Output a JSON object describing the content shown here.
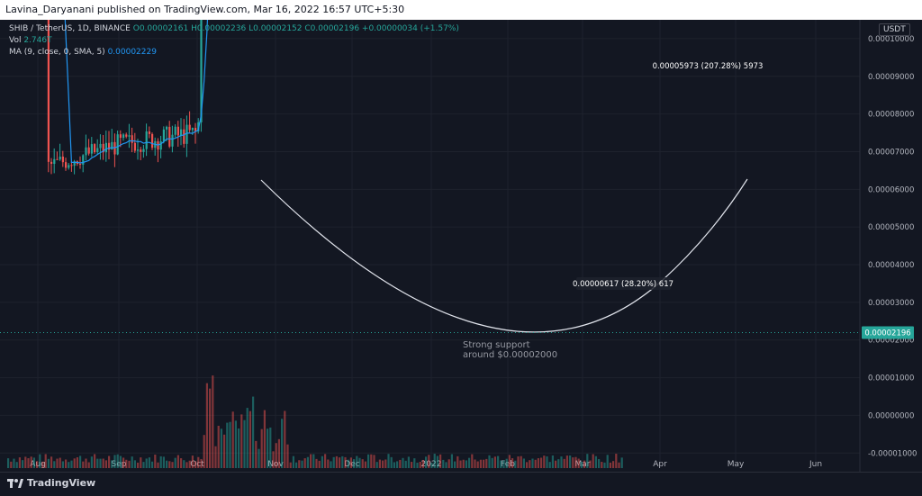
{
  "header": {
    "published_text": "Lavina_Daryanani published on TradingView.com, Mar 16, 2022 16:57 UTC+5:30"
  },
  "legend": {
    "symbol": "SHIB / TetherUS, 1D, BINANCE",
    "ohlc": "O0.00002161  H0.00002236  L0.00002152  C0.00002196  +0.00000034 (+1.57%)",
    "vol_label": "Vol",
    "vol_value": "2.746T",
    "ma_label": "MA (9, close, 0, SMA, 5)",
    "ma_value": "0.00002229"
  },
  "footer": {
    "brand": "TradingView",
    "logo_icon": "tradingview-logo-icon"
  },
  "colors": {
    "background": "#131722",
    "up": "#26a69a",
    "down": "#ef5350",
    "ma": "#2196f3",
    "curve": "#e0e3eb",
    "support": "#4caf50",
    "target_box": "#595a2b",
    "price_label_bg": "#2962ff"
  },
  "chart_data": {
    "type": "candlestick",
    "title": "SHIB / TetherUS, 1D, BINANCE",
    "currency_badge": "USDT",
    "ylim": [
      -1.4e-06,
      1.05e-05
    ],
    "y_ticks": [
      "0.00010000",
      "0.00009000",
      "0.00008000",
      "0.00007000",
      "0.00006000",
      "0.00005000",
      "0.00004000",
      "0.00003000",
      "0.00002000",
      "0.00001000",
      "0.00000000",
      "-0.00001000"
    ],
    "x_ticks": [
      "Aug",
      "Sep",
      "Oct",
      "Nov",
      "Dec",
      "2022",
      "Feb",
      "Mar",
      "Apr",
      "May",
      "Jun"
    ],
    "last_price": "0.00002196",
    "price_path": [
      [
        "Aug",
        6.6e-06
      ],
      [
        "Sep",
        7.2e-06
      ],
      [
        "Oct",
        7.5e-06
      ],
      [
        "Oct",
        3.1e-05
      ],
      [
        "Nov",
        8.5e-05
      ],
      [
        "Nov",
        5.2e-05
      ],
      [
        "Dec",
        3.6e-05
      ],
      [
        "Dec",
        3.8e-05
      ],
      [
        "2022",
        3e-05
      ],
      [
        "2022",
        2e-05
      ],
      [
        "Feb",
        3.3e-05
      ],
      [
        "Mar",
        2.3e-05
      ],
      [
        "Mar",
        2.2e-05
      ]
    ],
    "annotations": [
      {
        "text": "Strong support\naround $0.00002000",
        "label": "support"
      },
      {
        "text": "0.00000617 (28.20%) 617",
        "label": "short-measure"
      },
      {
        "text": "0.00005973 (207.28%) 5973",
        "label": "long-measure"
      }
    ],
    "support_level": 2e-05,
    "target_range": [
      2.92e-05,
      8.89e-05
    ]
  }
}
